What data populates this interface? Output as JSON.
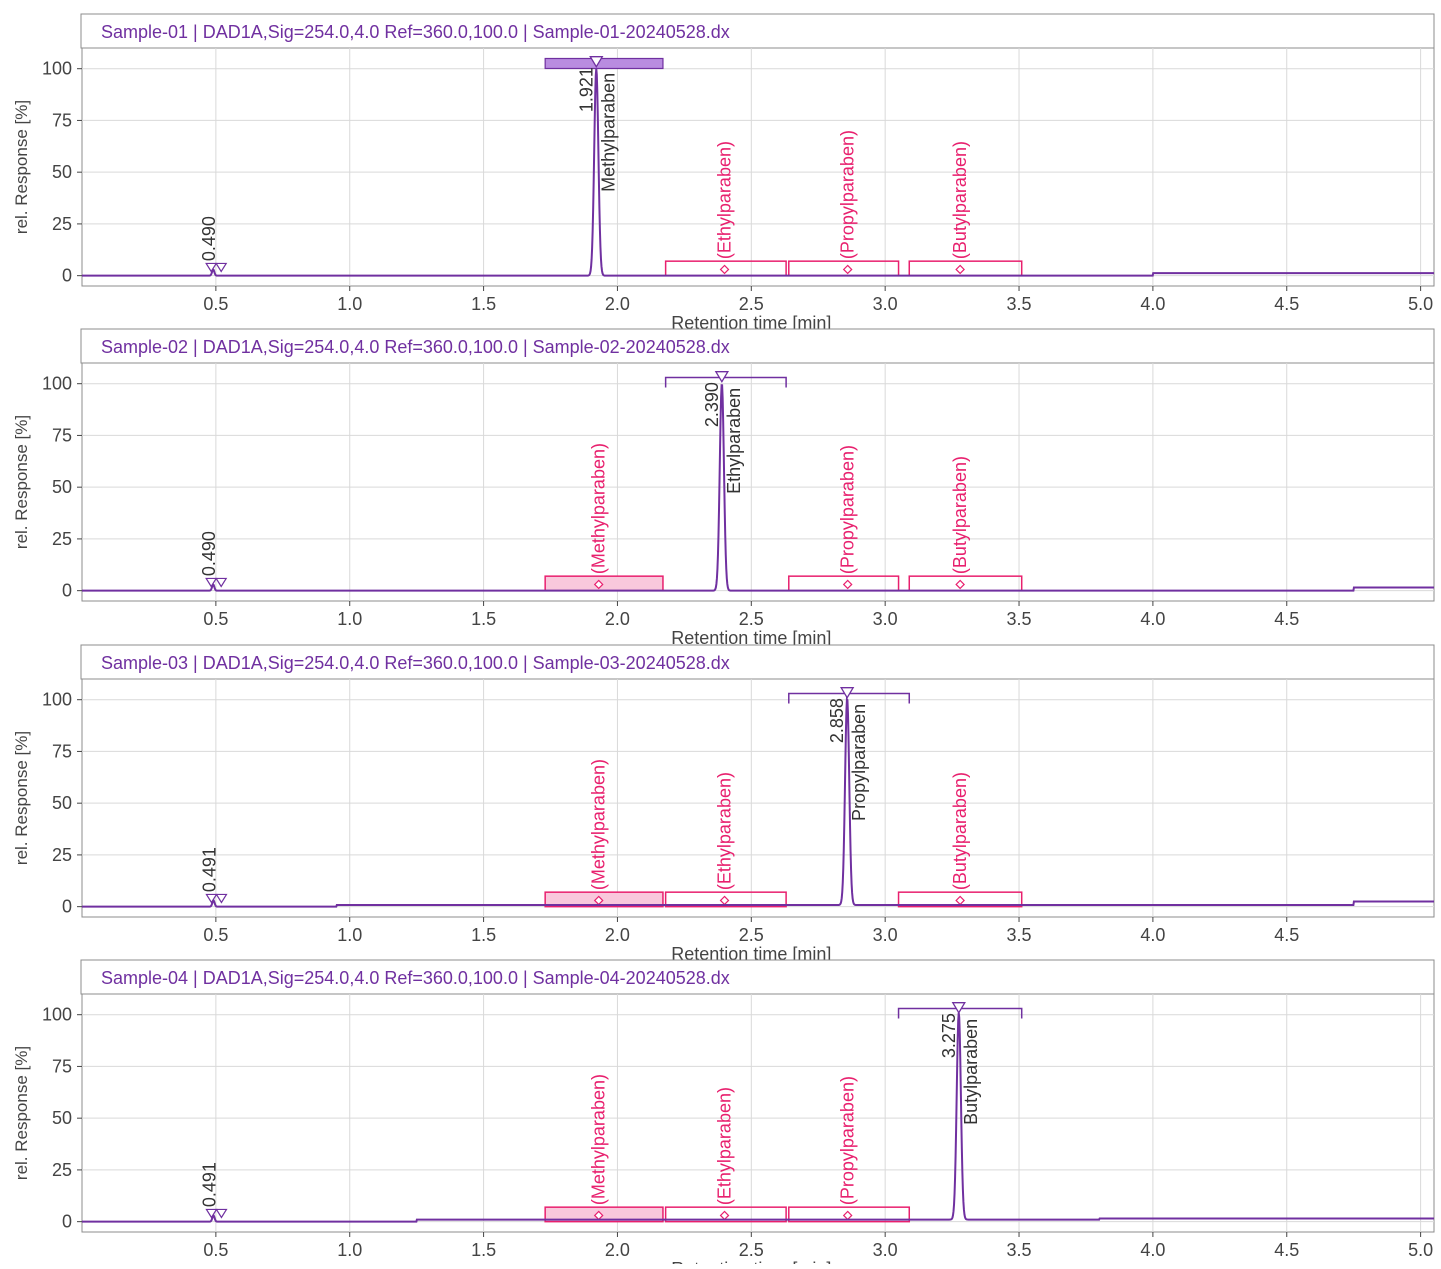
{
  "colors": {
    "trace": "#7030a0",
    "header_text": "#7030a0",
    "expected_label": "#e8206e",
    "expected_fill": "#f9c8dc",
    "detected_fill": "#b98ce0",
    "axis": "#444444",
    "grid": "#d9d9d9"
  },
  "chart_data": [
    {
      "type": "line",
      "panel_title": "Sample-01 | DAD1A,Sig=254.0,4.0  Ref=360.0,100.0 | Sample-01-20240528.dx",
      "xlabel": "Retention time [min]",
      "ylabel": "rel. Response [%]",
      "xlim": [
        0.0,
        5.05
      ],
      "ylim": [
        -5,
        110
      ],
      "xticks": [
        0.5,
        1.0,
        1.5,
        2.0,
        2.5,
        3.0,
        3.5,
        4.0,
        4.5,
        5.0
      ],
      "xtick_labels": [
        "0.5",
        "1.0",
        "1.5",
        "2.0",
        "2.5",
        "3.0",
        "3.5",
        "4.0",
        "4.5",
        "5.0"
      ],
      "yticks": [
        0,
        25,
        50,
        75,
        100
      ],
      "ytick_labels": [
        "0",
        "25",
        "50",
        "75",
        "100"
      ],
      "grid": true,
      "main_peak": {
        "rt": 1.921,
        "rt_label": "1.921",
        "name": "Methylparaben",
        "height": 100,
        "window": [
          1.73,
          2.17
        ]
      },
      "minor_peak": {
        "rt": 0.49,
        "rt_label": "0.490",
        "height": 3
      },
      "expected_windows": [
        {
          "name": "(Ethylparaben)",
          "center": 2.4,
          "start": 2.18,
          "end": 2.63
        },
        {
          "name": "(Propylparaben)",
          "center": 2.86,
          "start": 2.64,
          "end": 3.05
        },
        {
          "name": "(Butylparaben)",
          "center": 3.28,
          "start": 3.09,
          "end": 3.51
        }
      ],
      "baseline_steps": [
        [
          0.0,
          0
        ],
        [
          4.0,
          1.2
        ],
        [
          5.05,
          1.2
        ]
      ]
    },
    {
      "type": "line",
      "panel_title": "Sample-02 | DAD1A,Sig=254.0,4.0  Ref=360.0,100.0 | Sample-02-20240528.dx",
      "xlabel": "Retention time [min]",
      "ylabel": "rel. Response [%]",
      "xlim": [
        0.0,
        5.05
      ],
      "ylim": [
        -5,
        110
      ],
      "xticks": [
        0.5,
        1.0,
        1.5,
        2.0,
        2.5,
        3.0,
        3.5,
        4.0,
        4.5
      ],
      "xtick_labels": [
        "0.5",
        "1.0",
        "1.5",
        "2.0",
        "2.5",
        "3.0",
        "3.5",
        "4.0",
        "4.5"
      ],
      "yticks": [
        0,
        25,
        50,
        75,
        100
      ],
      "ytick_labels": [
        "0",
        "25",
        "50",
        "75",
        "100"
      ],
      "grid": true,
      "main_peak": {
        "rt": 2.39,
        "rt_label": "2.390",
        "name": "Ethylparaben",
        "height": 100,
        "window": [
          2.18,
          2.63
        ]
      },
      "minor_peak": {
        "rt": 0.49,
        "rt_label": "0.490",
        "height": 3
      },
      "expected_windows": [
        {
          "name": "(Methylparaben)",
          "center": 1.93,
          "start": 1.73,
          "end": 2.17
        },
        {
          "name": "(Propylparaben)",
          "center": 2.86,
          "start": 2.64,
          "end": 3.05
        },
        {
          "name": "(Butylparaben)",
          "center": 3.28,
          "start": 3.09,
          "end": 3.51
        }
      ],
      "baseline_steps": [
        [
          0.0,
          0
        ],
        [
          4.75,
          1.5
        ],
        [
          5.05,
          1.5
        ]
      ]
    },
    {
      "type": "line",
      "panel_title": "Sample-03 | DAD1A,Sig=254.0,4.0  Ref=360.0,100.0 | Sample-03-20240528.dx",
      "xlabel": "Retention time [min]",
      "ylabel": "rel. Response [%]",
      "xlim": [
        0.0,
        5.05
      ],
      "ylim": [
        -5,
        110
      ],
      "xticks": [
        0.5,
        1.0,
        1.5,
        2.0,
        2.5,
        3.0,
        3.5,
        4.0,
        4.5
      ],
      "xtick_labels": [
        "0.5",
        "1.0",
        "1.5",
        "2.0",
        "2.5",
        "3.0",
        "3.5",
        "4.0",
        "4.5"
      ],
      "yticks": [
        0,
        25,
        50,
        75,
        100
      ],
      "ytick_labels": [
        "0",
        "25",
        "50",
        "75",
        "100"
      ],
      "grid": true,
      "main_peak": {
        "rt": 2.858,
        "rt_label": "2.858",
        "name": "Propylparaben",
        "height": 100,
        "window": [
          2.64,
          3.09
        ]
      },
      "minor_peak": {
        "rt": 0.491,
        "rt_label": "0.491",
        "height": 3
      },
      "expected_windows": [
        {
          "name": "(Methylparaben)",
          "center": 1.93,
          "start": 1.73,
          "end": 2.17
        },
        {
          "name": "(Ethylparaben)",
          "center": 2.4,
          "start": 2.18,
          "end": 2.63
        },
        {
          "name": "(Butylparaben)",
          "center": 3.28,
          "start": 3.05,
          "end": 3.51
        }
      ],
      "baseline_steps": [
        [
          0.0,
          0
        ],
        [
          0.95,
          0.8
        ],
        [
          4.75,
          2.5
        ],
        [
          5.05,
          2.5
        ]
      ]
    },
    {
      "type": "line",
      "panel_title": "Sample-04 | DAD1A,Sig=254.0,4.0  Ref=360.0,100.0 | Sample-04-20240528.dx",
      "xlabel": "Retention time [min]",
      "ylabel": "rel. Response [%]",
      "xlim": [
        0.0,
        5.05
      ],
      "ylim": [
        -5,
        110
      ],
      "xticks": [
        0.5,
        1.0,
        1.5,
        2.0,
        2.5,
        3.0,
        3.5,
        4.0,
        4.5,
        5.0
      ],
      "xtick_labels": [
        "0.5",
        "1.0",
        "1.5",
        "2.0",
        "2.5",
        "3.0",
        "3.5",
        "4.0",
        "4.5",
        "5.0"
      ],
      "yticks": [
        0,
        25,
        50,
        75,
        100
      ],
      "ytick_labels": [
        "0",
        "25",
        "50",
        "75",
        "100"
      ],
      "grid": true,
      "main_peak": {
        "rt": 3.275,
        "rt_label": "3.275",
        "name": "Butylparaben",
        "height": 100,
        "window": [
          3.05,
          3.51
        ]
      },
      "minor_peak": {
        "rt": 0.491,
        "rt_label": "0.491",
        "height": 3
      },
      "expected_windows": [
        {
          "name": "(Methylparaben)",
          "center": 1.93,
          "start": 1.73,
          "end": 2.17
        },
        {
          "name": "(Ethylparaben)",
          "center": 2.4,
          "start": 2.18,
          "end": 2.63
        },
        {
          "name": "(Propylparaben)",
          "center": 2.86,
          "start": 2.64,
          "end": 3.09
        }
      ],
      "baseline_steps": [
        [
          0.0,
          0
        ],
        [
          1.25,
          1.0
        ],
        [
          3.8,
          1.5
        ],
        [
          5.05,
          1.5
        ]
      ]
    }
  ]
}
